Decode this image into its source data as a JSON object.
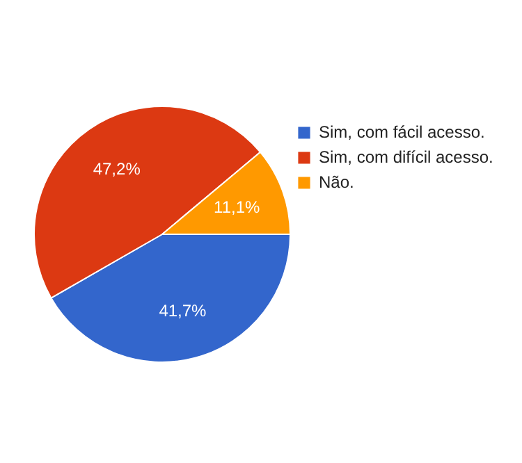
{
  "chart_data": {
    "type": "pie",
    "categories": [
      "Sim, com fácil acesso.",
      "Sim, com difícil acesso.",
      "Não."
    ],
    "values": [
      41.7,
      47.2,
      11.1
    ],
    "colors": [
      "#3366cc",
      "#dc3912",
      "#ff9900"
    ],
    "value_labels": [
      "41,7%",
      "47,2%",
      "11,1%"
    ],
    "legend": "right"
  }
}
